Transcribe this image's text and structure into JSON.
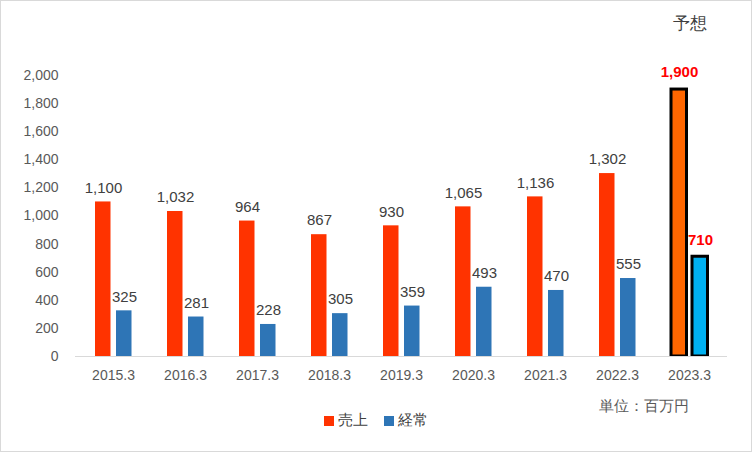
{
  "chart_data": {
    "type": "bar",
    "categories": [
      "2015.3",
      "2016.3",
      "2017.3",
      "2018.3",
      "2019.3",
      "2020.3",
      "2021.3",
      "2022.3",
      "2023.3"
    ],
    "series": [
      {
        "name": "売上",
        "color": "#FF3300",
        "colors": [
          "#FF3300",
          "#FF3300",
          "#FF3300",
          "#FF3300",
          "#FF3300",
          "#FF3300",
          "#FF3300",
          "#FF3300",
          "#FF6600"
        ],
        "values": [
          1100,
          1032,
          964,
          867,
          930,
          1065,
          1136,
          1302,
          1900
        ],
        "value_labels": [
          "1,100",
          "1,032",
          "964",
          "867",
          "930",
          "1,065",
          "1,136",
          "1,302",
          "1,900"
        ]
      },
      {
        "name": "経常",
        "color": "#2E75B6",
        "colors": [
          "#2E75B6",
          "#2E75B6",
          "#2E75B6",
          "#2E75B6",
          "#2E75B6",
          "#2E75B6",
          "#2E75B6",
          "#2E75B6",
          "#00B0F0"
        ],
        "values": [
          325,
          281,
          228,
          305,
          359,
          493,
          470,
          555,
          710
        ]
      }
    ],
    "ylim": [
      0,
      2000
    ],
    "yticks": [
      0,
      200,
      400,
      600,
      800,
      {
        "value": 1000,
        "label": "1,000"
      },
      {
        "value": 1200,
        "label": "1,200"
      },
      {
        "value": 1400,
        "label": "1,400"
      },
      {
        "value": 1600,
        "label": "1,600"
      },
      {
        "value": 1800,
        "label": "1,800"
      },
      {
        "value": 2000,
        "label": "2,000"
      }
    ],
    "grid": false,
    "data_labels": true,
    "legend": "bottom",
    "annotations": [
      {
        "text": "予想",
        "category": "2023.3"
      },
      {
        "text": "単位：百万円"
      }
    ]
  }
}
